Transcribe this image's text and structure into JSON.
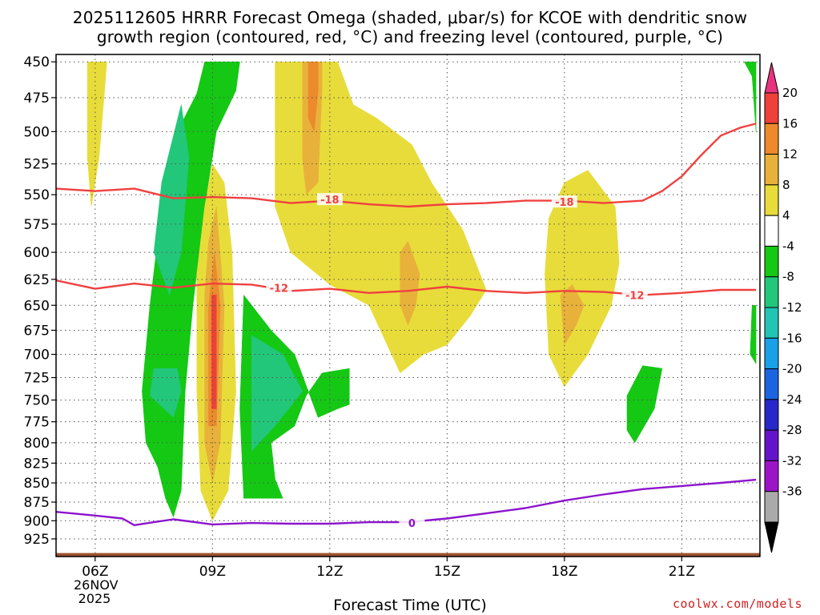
{
  "chart_data": {
    "type": "heatmap",
    "title": "2025112605 HRRR Forecast Omega (shaded, μbar/s) for KCOE with dendritic snow",
    "subtitle": "growth region (contoured, red, °C) and freezing level (contoured, purple, °C)",
    "xlabel": "Forecast Time (UTC)",
    "ylabel": "",
    "x_ticks": [
      "06Z",
      "09Z",
      "12Z",
      "15Z",
      "18Z",
      "21Z"
    ],
    "x_tick_hours": [
      6,
      9,
      12,
      15,
      18,
      21
    ],
    "date_label": [
      "26NOV",
      "2025"
    ],
    "xlim": [
      5,
      23
    ],
    "y_ticks": [
      450,
      475,
      500,
      525,
      550,
      575,
      600,
      625,
      650,
      675,
      700,
      725,
      750,
      775,
      800,
      825,
      850,
      875,
      900,
      925
    ],
    "ylim": [
      950,
      445
    ],
    "y_scale": "log",
    "grid": true,
    "colorbar": {
      "labels": [
        "20",
        "16",
        "12",
        "8",
        "4",
        "-4",
        "-8",
        "-12",
        "-16",
        "-20",
        "-24",
        "-28",
        "-32",
        "-36"
      ],
      "levels": [
        20,
        16,
        12,
        8,
        4,
        -4,
        -8,
        -12,
        -16,
        -20,
        -24,
        -28,
        -32,
        -36
      ],
      "colors": [
        "#e8347e",
        "#f0403a",
        "#ec8a2c",
        "#e8b23a",
        "#e8dc3a",
        "#ffffff",
        "#14c814",
        "#22c77a",
        "#22c4b4",
        "#1aa0e8",
        "#1a64e0",
        "#2828c8",
        "#6414c8",
        "#9c14c8",
        "#aaaaaa",
        "#000000"
      ],
      "placement": "right"
    },
    "shaded_regions": [
      {
        "name": "upward-motion-early",
        "omega": -6,
        "color": "#14c814",
        "points": [
          [
            7.3,
            800
          ],
          [
            7.2,
            740
          ],
          [
            7.4,
            650
          ],
          [
            7.7,
            560
          ],
          [
            8.1,
            500
          ],
          [
            8.6,
            472
          ],
          [
            8.8,
            450
          ],
          [
            9.7,
            450
          ],
          [
            9.6,
            470
          ],
          [
            9.1,
            500
          ],
          [
            8.8,
            560
          ],
          [
            8.5,
            650
          ],
          [
            8.3,
            740
          ],
          [
            8.2,
            860
          ],
          [
            8.0,
            895
          ],
          [
            7.8,
            870
          ],
          [
            7.6,
            830
          ]
        ]
      },
      {
        "name": "upward-motion-early-core",
        "omega": -10,
        "color": "#22c77a",
        "points": [
          [
            8.2,
            480
          ],
          [
            7.7,
            540
          ],
          [
            7.5,
            600
          ],
          [
            7.9,
            640
          ],
          [
            8.2,
            600
          ],
          [
            8.4,
            520
          ]
        ]
      },
      {
        "name": "upward-motion-early-low",
        "omega": -10,
        "color": "#22c77a",
        "points": [
          [
            7.5,
            715
          ],
          [
            7.4,
            745
          ],
          [
            8.0,
            770
          ],
          [
            8.2,
            740
          ],
          [
            8.1,
            715
          ]
        ]
      },
      {
        "name": "upward-motion-late-morning",
        "omega": -6,
        "color": "#14c814",
        "points": [
          [
            9.8,
            640
          ],
          [
            9.7,
            760
          ],
          [
            9.8,
            870
          ],
          [
            10.8,
            870
          ],
          [
            10.6,
            845
          ],
          [
            10.5,
            800
          ],
          [
            11.1,
            780
          ],
          [
            11.4,
            745
          ],
          [
            11.8,
            720
          ],
          [
            12.5,
            715
          ],
          [
            12.5,
            755
          ],
          [
            12.2,
            760
          ],
          [
            11.7,
            770
          ],
          [
            11.1,
            700
          ],
          [
            10.5,
            675
          ]
        ]
      },
      {
        "name": "upward-motion-late-morning-core",
        "omega": -10,
        "color": "#22c77a",
        "points": [
          [
            10.0,
            680
          ],
          [
            10.0,
            810
          ],
          [
            10.6,
            780
          ],
          [
            11.3,
            740
          ],
          [
            10.8,
            700
          ]
        ]
      },
      {
        "name": "upward-motion-afternoon",
        "omega": -6,
        "color": "#14c814",
        "points": [
          [
            19.6,
            745
          ],
          [
            19.6,
            785
          ],
          [
            19.8,
            800
          ],
          [
            20.3,
            760
          ],
          [
            20.5,
            715
          ],
          [
            20.0,
            712
          ]
        ]
      },
      {
        "name": "upward-motion-edge",
        "omega": -6,
        "color": "#14c814",
        "points": [
          [
            22.6,
            450
          ],
          [
            22.9,
            450
          ],
          [
            22.9,
            500
          ],
          [
            22.8,
            460
          ]
        ]
      },
      {
        "name": "upward-motion-edge-low",
        "omega": -6,
        "color": "#14c814",
        "points": [
          [
            22.8,
            650
          ],
          [
            22.9,
            650
          ],
          [
            22.9,
            710
          ],
          [
            22.75,
            700
          ]
        ]
      },
      {
        "name": "sinking-early-top",
        "omega": 5,
        "color": "#e8dc3a",
        "points": [
          [
            5.8,
            450
          ],
          [
            5.8,
            520
          ],
          [
            5.9,
            560
          ],
          [
            6.1,
            520
          ],
          [
            6.3,
            450
          ]
        ]
      },
      {
        "name": "sinking-0900",
        "omega": 5,
        "color": "#e8dc3a",
        "points": [
          [
            8.6,
            620
          ],
          [
            8.6,
            740
          ],
          [
            8.7,
            860
          ],
          [
            9.0,
            900
          ],
          [
            9.4,
            860
          ],
          [
            9.6,
            740
          ],
          [
            9.5,
            600
          ],
          [
            9.3,
            540
          ],
          [
            9.0,
            525
          ],
          [
            8.8,
            560
          ]
        ]
      },
      {
        "name": "sinking-0900-orange",
        "omega": 9,
        "color": "#e8b23a",
        "points": [
          [
            8.8,
            640
          ],
          [
            8.8,
            800
          ],
          [
            9.0,
            850
          ],
          [
            9.2,
            800
          ],
          [
            9.3,
            650
          ],
          [
            9.1,
            560
          ],
          [
            8.9,
            590
          ]
        ]
      },
      {
        "name": "sinking-0900-dark",
        "omega": 13,
        "color": "#ec8a2c",
        "points": [
          [
            8.9,
            650
          ],
          [
            8.9,
            780
          ],
          [
            9.1,
            780
          ],
          [
            9.2,
            650
          ],
          [
            9.05,
            600
          ]
        ]
      },
      {
        "name": "sinking-0900-red",
        "omega": 17,
        "color": "#f0403a",
        "points": [
          [
            8.98,
            640
          ],
          [
            8.98,
            760
          ],
          [
            9.1,
            760
          ],
          [
            9.1,
            640
          ]
        ]
      },
      {
        "name": "sinking-midday",
        "omega": 5,
        "color": "#e8dc3a",
        "points": [
          [
            10.6,
            450
          ],
          [
            10.6,
            560
          ],
          [
            11.0,
            600
          ],
          [
            12.0,
            630
          ],
          [
            13.0,
            650
          ],
          [
            13.8,
            720
          ],
          [
            14.4,
            700
          ],
          [
            15.0,
            690
          ],
          [
            15.6,
            660
          ],
          [
            16.0,
            635
          ],
          [
            15.4,
            580
          ],
          [
            14.6,
            540
          ],
          [
            14.1,
            510
          ],
          [
            13.2,
            490
          ],
          [
            12.6,
            480
          ],
          [
            12.2,
            450
          ]
        ]
      },
      {
        "name": "sinking-midday-orange",
        "omega": 9,
        "color": "#e8b23a",
        "points": [
          [
            11.3,
            450
          ],
          [
            11.3,
            520
          ],
          [
            11.4,
            550
          ],
          [
            11.7,
            540
          ],
          [
            11.8,
            470
          ],
          [
            11.8,
            450
          ]
        ]
      },
      {
        "name": "sinking-midday-dark",
        "omega": 13,
        "color": "#ec8a2c",
        "points": [
          [
            11.45,
            450
          ],
          [
            11.45,
            490
          ],
          [
            11.6,
            500
          ],
          [
            11.7,
            470
          ],
          [
            11.7,
            450
          ]
        ]
      },
      {
        "name": "sinking-midday-orange-2",
        "omega": 9,
        "color": "#e8b23a",
        "points": [
          [
            13.8,
            600
          ],
          [
            13.8,
            650
          ],
          [
            14.0,
            670
          ],
          [
            14.2,
            650
          ],
          [
            14.3,
            620
          ],
          [
            14.0,
            590
          ]
        ]
      },
      {
        "name": "sinking-afternoon",
        "omega": 5,
        "color": "#e8dc3a",
        "points": [
          [
            17.5,
            620
          ],
          [
            17.6,
            700
          ],
          [
            18.0,
            735
          ],
          [
            18.6,
            700
          ],
          [
            19.2,
            650
          ],
          [
            19.4,
            610
          ],
          [
            19.3,
            560
          ],
          [
            18.6,
            530
          ],
          [
            18.0,
            540
          ],
          [
            17.6,
            570
          ]
        ]
      },
      {
        "name": "sinking-afternoon-orange",
        "omega": 9,
        "color": "#e8b23a",
        "points": [
          [
            17.9,
            640
          ],
          [
            18.0,
            690
          ],
          [
            18.3,
            670
          ],
          [
            18.5,
            650
          ],
          [
            18.2,
            630
          ]
        ]
      }
    ],
    "series": [
      {
        "name": "",
        "label": "-18",
        "color": "#f04040",
        "x": [
          5,
          6,
          7,
          8,
          9,
          10,
          11,
          12,
          13,
          14,
          15,
          16,
          17,
          18,
          19,
          20,
          20.5,
          21,
          21.5,
          22,
          22.5,
          22.9
        ],
        "y": [
          545,
          547,
          545,
          553,
          552,
          553,
          557,
          555,
          558,
          560,
          558,
          557,
          555,
          555,
          557,
          555,
          547,
          535,
          518,
          503,
          497,
          494
        ]
      },
      {
        "name": "",
        "label": "-12",
        "color": "#f04040",
        "x": [
          5,
          6,
          7,
          8,
          9,
          10,
          11,
          12,
          13,
          14,
          15,
          16,
          17,
          18,
          19,
          20,
          21,
          22,
          22.9
        ],
        "y": [
          626,
          634,
          629,
          633,
          629,
          630,
          636,
          634,
          638,
          636,
          632,
          636,
          638,
          636,
          637,
          640,
          638,
          635,
          635
        ]
      },
      {
        "name": "",
        "label": "0",
        "color": "#8c14cc",
        "x": [
          5,
          6,
          6.7,
          7,
          7.5,
          8,
          9,
          10,
          11,
          12,
          13,
          14,
          15,
          16,
          17,
          18,
          19,
          20,
          21,
          22,
          22.9
        ],
        "y": [
          888,
          893,
          897,
          906,
          902,
          898,
          905,
          903,
          904,
          904,
          902,
          902,
          897,
          890,
          883,
          873,
          865,
          858,
          854,
          850,
          846
        ]
      }
    ],
    "terrain": {
      "color": "#a0522d",
      "surface_pressure": 945
    }
  },
  "credit": "coolwx.com/models",
  "contour_labels": [
    {
      "text": "-18",
      "x": 12.0,
      "y": 554,
      "color": "#f04040"
    },
    {
      "text": "-18",
      "x": 18.0,
      "y": 556,
      "color": "#f04040"
    },
    {
      "text": "-12",
      "x": 10.7,
      "y": 633,
      "color": "#f04040"
    },
    {
      "text": "-12",
      "x": 19.8,
      "y": 640,
      "color": "#f04040"
    },
    {
      "text": "0",
      "x": 14.1,
      "y": 903,
      "color": "#8c14cc"
    }
  ]
}
